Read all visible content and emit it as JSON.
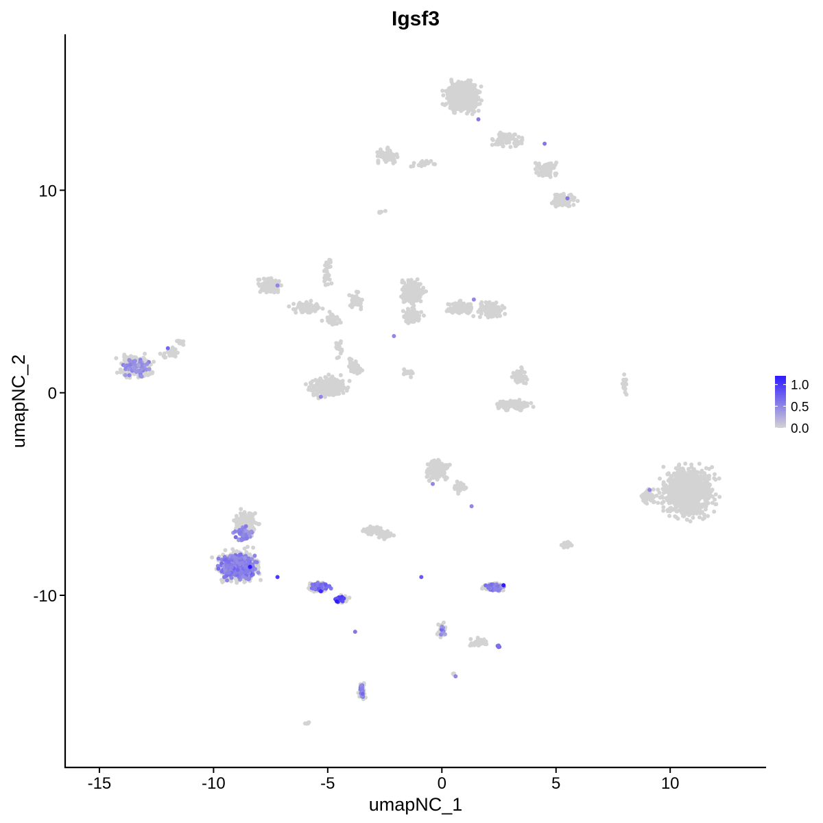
{
  "chart_data": {
    "type": "scatter",
    "title": "Igsf3",
    "xlabel": "umapNC_1",
    "ylabel": "umapNC_2",
    "xlim": [
      -16.5,
      14.2
    ],
    "ylim": [
      -18.5,
      17.7
    ],
    "x_ticks": [
      -15,
      -10,
      -5,
      0,
      5,
      10
    ],
    "x_tick_labels": [
      "-15",
      "-10",
      "-5",
      "0",
      "5",
      "10"
    ],
    "y_ticks": [
      -10,
      0,
      10
    ],
    "y_tick_labels": [
      "-10",
      "0",
      "10"
    ],
    "grid": false,
    "legend_position": "right",
    "color_scale": {
      "low": "#d3d3d3",
      "high": "#2f1aff",
      "min": 0,
      "max": 1.2,
      "breaks": [
        1.0,
        0.5,
        0.0
      ],
      "break_labels": [
        "1.0",
        "0.5",
        "0.0"
      ]
    },
    "clusters": [
      {
        "cx": 0.9,
        "cy": 14.6,
        "rx": 1.2,
        "ry": 1.2,
        "n": 450
      },
      {
        "cx": 2.9,
        "cy": 12.5,
        "rx": 1.0,
        "ry": 0.7,
        "n": 80
      },
      {
        "cx": 4.6,
        "cy": 11.0,
        "rx": 0.9,
        "ry": 0.8,
        "n": 70
      },
      {
        "cx": 5.3,
        "cy": 9.5,
        "rx": 0.9,
        "ry": 0.6,
        "n": 90
      },
      {
        "cx": -2.4,
        "cy": 11.7,
        "rx": 0.8,
        "ry": 0.5,
        "n": 90
      },
      {
        "cx": -0.8,
        "cy": 11.3,
        "rx": 0.9,
        "ry": 0.3,
        "n": 30
      },
      {
        "cx": -7.5,
        "cy": 5.3,
        "rx": 0.8,
        "ry": 0.6,
        "n": 100
      },
      {
        "cx": -6.0,
        "cy": 4.2,
        "rx": 1.0,
        "ry": 0.5,
        "n": 80
      },
      {
        "cx": -4.8,
        "cy": 3.6,
        "rx": 0.6,
        "ry": 0.5,
        "n": 50
      },
      {
        "cx": -5.0,
        "cy": 6.0,
        "rx": 0.3,
        "ry": 1.2,
        "n": 30
      },
      {
        "cx": -3.8,
        "cy": 4.6,
        "rx": 0.6,
        "ry": 0.8,
        "n": 40
      },
      {
        "cx": -1.3,
        "cy": 5.0,
        "rx": 0.8,
        "ry": 1.0,
        "n": 220
      },
      {
        "cx": -1.3,
        "cy": 3.8,
        "rx": 0.7,
        "ry": 0.6,
        "n": 90
      },
      {
        "cx": 0.8,
        "cy": 4.2,
        "rx": 0.9,
        "ry": 0.5,
        "n": 130
      },
      {
        "cx": 2.1,
        "cy": 4.1,
        "rx": 0.8,
        "ry": 0.6,
        "n": 130
      },
      {
        "cx": -5.0,
        "cy": 0.3,
        "rx": 1.3,
        "ry": 0.8,
        "n": 280
      },
      {
        "cx": -3.8,
        "cy": 1.3,
        "rx": 0.5,
        "ry": 0.7,
        "n": 60
      },
      {
        "cx": -4.5,
        "cy": 2.2,
        "rx": 0.3,
        "ry": 0.8,
        "n": 20
      },
      {
        "cx": -1.5,
        "cy": 1.0,
        "rx": 0.6,
        "ry": 0.3,
        "n": 15
      },
      {
        "cx": 3.2,
        "cy": -0.6,
        "rx": 1.2,
        "ry": 0.4,
        "n": 110
      },
      {
        "cx": 3.4,
        "cy": 0.8,
        "rx": 0.5,
        "ry": 0.8,
        "n": 60
      },
      {
        "cx": 8.0,
        "cy": 0.3,
        "rx": 0.2,
        "ry": 0.8,
        "n": 20
      },
      {
        "cx": -13.4,
        "cy": 1.3,
        "rx": 1.2,
        "ry": 0.9,
        "n": 200
      },
      {
        "cx": -11.9,
        "cy": 2.0,
        "rx": 0.6,
        "ry": 0.5,
        "n": 20
      },
      {
        "cx": 10.8,
        "cy": -4.9,
        "rx": 1.8,
        "ry": 2.0,
        "n": 900
      },
      {
        "cx": 9.0,
        "cy": -5.1,
        "rx": 0.6,
        "ry": 0.6,
        "n": 60
      },
      {
        "cx": -0.2,
        "cy": -3.8,
        "rx": 0.8,
        "ry": 0.8,
        "n": 160
      },
      {
        "cx": 0.8,
        "cy": -4.7,
        "rx": 0.5,
        "ry": 0.4,
        "n": 40
      },
      {
        "cx": -2.5,
        "cy": -7.0,
        "rx": 0.5,
        "ry": 0.3,
        "n": 50
      },
      {
        "cx": -8.9,
        "cy": -8.6,
        "rx": 1.4,
        "ry": 1.2,
        "n": 600
      },
      {
        "cx": -8.6,
        "cy": -6.4,
        "rx": 0.8,
        "ry": 0.9,
        "n": 150
      },
      {
        "cx": -5.4,
        "cy": -9.6,
        "rx": 0.9,
        "ry": 0.4,
        "n": 90
      },
      {
        "cx": -4.3,
        "cy": -10.2,
        "rx": 0.4,
        "ry": 0.3,
        "n": 30
      },
      {
        "cx": 2.3,
        "cy": -9.6,
        "rx": 0.7,
        "ry": 0.3,
        "n": 130
      },
      {
        "cx": -3.5,
        "cy": -14.7,
        "rx": 0.25,
        "ry": 0.8,
        "n": 40
      },
      {
        "cx": 0.0,
        "cy": -11.7,
        "rx": 0.3,
        "ry": 0.6,
        "n": 30
      },
      {
        "cx": 1.6,
        "cy": -12.3,
        "rx": 0.8,
        "ry": 0.3,
        "n": 30
      },
      {
        "cx": 5.5,
        "cy": -7.5,
        "rx": 0.4,
        "ry": 0.3,
        "n": 20
      },
      {
        "cx": -3.0,
        "cy": -6.8,
        "rx": 1.1,
        "ry": 0.3,
        "n": 40
      },
      {
        "cx": -11.5,
        "cy": 2.5,
        "rx": 0.4,
        "ry": 0.3,
        "n": 10
      },
      {
        "cx": -5.9,
        "cy": -16.3,
        "rx": 0.25,
        "ry": 0.2,
        "n": 5
      },
      {
        "cx": -2.7,
        "cy": 8.9,
        "rx": 0.3,
        "ry": 0.2,
        "n": 5
      },
      {
        "cx": 0.5,
        "cy": -13.9,
        "rx": 0.15,
        "ry": 0.1,
        "n": 3
      }
    ],
    "high_expr_regions": [
      {
        "cx": -8.9,
        "cy": -8.6,
        "rx": 1.35,
        "ry": 1.0,
        "n": 420,
        "level": 0.55
      },
      {
        "cx": -8.7,
        "cy": -7.0,
        "rx": 0.8,
        "ry": 0.6,
        "n": 60,
        "level": 0.5
      },
      {
        "cx": -5.3,
        "cy": -9.6,
        "rx": 0.8,
        "ry": 0.35,
        "n": 55,
        "level": 0.65
      },
      {
        "cx": -4.5,
        "cy": -10.2,
        "rx": 0.4,
        "ry": 0.25,
        "n": 15,
        "level": 0.9
      },
      {
        "cx": 2.3,
        "cy": -9.6,
        "rx": 0.65,
        "ry": 0.28,
        "n": 110,
        "level": 0.55
      },
      {
        "cx": -13.4,
        "cy": 1.3,
        "rx": 1.1,
        "ry": 0.8,
        "n": 60,
        "level": 0.45
      },
      {
        "cx": -3.5,
        "cy": -14.7,
        "rx": 0.2,
        "ry": 0.75,
        "n": 25,
        "level": 0.55
      },
      {
        "cx": 0.0,
        "cy": -11.7,
        "rx": 0.25,
        "ry": 0.5,
        "n": 8,
        "level": 0.5
      },
      {
        "cx": 2.5,
        "cy": -12.5,
        "rx": 0.2,
        "ry": 0.15,
        "n": 5,
        "level": 0.7
      }
    ],
    "peak_points": [
      {
        "x": -8.4,
        "y": -8.6,
        "value": 1.2
      },
      {
        "x": -4.6,
        "y": -10.3,
        "value": 1.2
      },
      {
        "x": -5.3,
        "y": -9.8,
        "value": 1.1
      },
      {
        "x": 2.7,
        "y": -9.5,
        "value": 1.2
      },
      {
        "x": -7.2,
        "y": -9.1,
        "value": 1.0
      },
      {
        "x": 5.5,
        "y": 9.6,
        "value": 0.6
      },
      {
        "x": 4.5,
        "y": 12.3,
        "value": 0.6
      },
      {
        "x": 1.6,
        "y": 13.5,
        "value": 0.6
      },
      {
        "x": 1.4,
        "y": 4.6,
        "value": 0.5
      },
      {
        "x": -7.2,
        "y": 5.3,
        "value": 0.5
      },
      {
        "x": -5.3,
        "y": -0.2,
        "value": 0.5
      },
      {
        "x": -2.1,
        "y": 2.8,
        "value": 0.5
      },
      {
        "x": 9.1,
        "y": -4.8,
        "value": 0.5
      },
      {
        "x": -0.4,
        "y": -4.5,
        "value": 0.5
      },
      {
        "x": 1.3,
        "y": -5.6,
        "value": 0.5
      },
      {
        "x": -0.9,
        "y": -9.1,
        "value": 0.8
      },
      {
        "x": -12.0,
        "y": 2.2,
        "value": 0.7
      },
      {
        "x": -3.8,
        "y": -11.8,
        "value": 0.6
      },
      {
        "x": 0.6,
        "y": -14.0,
        "value": 0.5
      }
    ]
  }
}
